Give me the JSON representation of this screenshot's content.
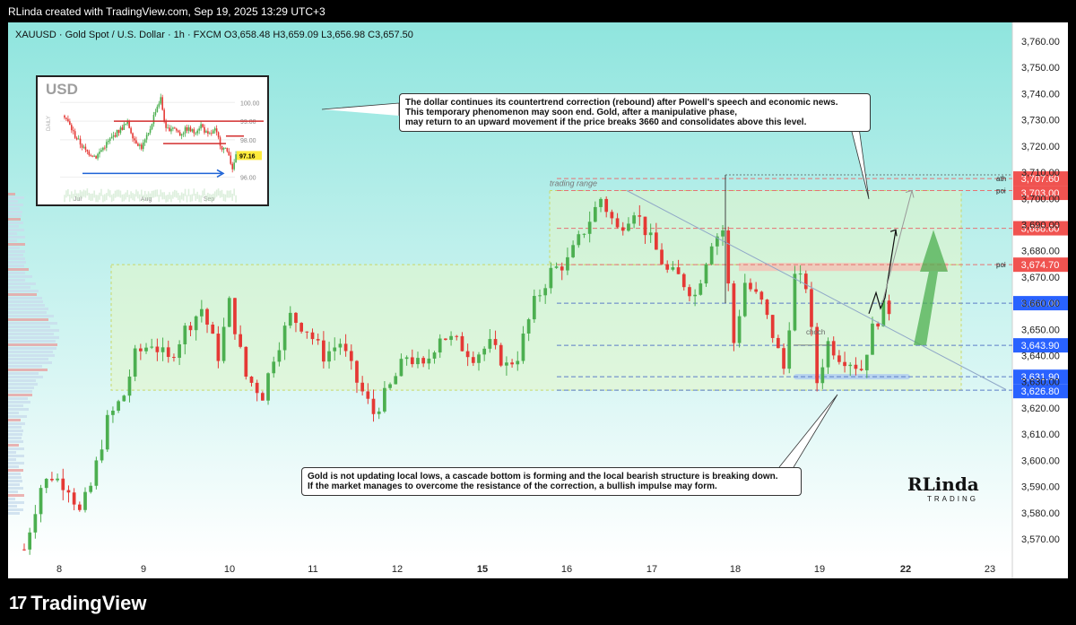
{
  "header": {
    "credit": "RLinda created with TradingView.com, Sep 19, 2025 13:29 UTC+3"
  },
  "footer": {
    "brand": "TradingView"
  },
  "colors": {
    "up": "#4caf50",
    "down": "#e53935",
    "bg_top": "#8fe5de",
    "bg_bottom": "#ffffff",
    "range_fill": "#e3f5c8",
    "label_red": "#f05350",
    "label_blue": "#2962ff",
    "level_red": "#e57373",
    "level_blue": "#5c7ec8"
  },
  "chart_data": {
    "type": "candlestick",
    "symbol_line": "XAUUSD · Gold Spot / U.S. Dollar · 1h · FXCM   O3,658.48  H3,659.09  L3,656.98  C3,657.50",
    "ohlc": {
      "open": 3658.48,
      "high": 3659.09,
      "low": 3656.98,
      "close": 3657.5
    },
    "y_ticks": [
      3570,
      3580,
      3590,
      3600,
      3610,
      3620,
      3630,
      3640,
      3650,
      3660,
      3670,
      3680,
      3690,
      3700,
      3710,
      3720,
      3730,
      3740,
      3750,
      3760
    ],
    "y_tick_labels": [
      "3,570.00",
      "3,580.00",
      "3,590.00",
      "3,600.00",
      "3,610.00",
      "3,620.00",
      "3,630.00",
      "3,640.00",
      "3,650.00",
      "3,660.00",
      "3,670.00",
      "3,680.00",
      "3,690.00",
      "3,700.00",
      "3,710.00",
      "3,720.00",
      "3,730.00",
      "3,740.00",
      "3,750.00",
      "3,760.00"
    ],
    "ylim": [
      3562,
      3767
    ],
    "x_ticks": [
      "8",
      "9",
      "10",
      "11",
      "12",
      "15",
      "16",
      "17",
      "18",
      "19",
      "22",
      "23"
    ],
    "bold_x_ticks": [
      "15",
      "22"
    ],
    "path": [
      [
        0,
        3566
      ],
      [
        3,
        3590
      ],
      [
        5,
        3594
      ],
      [
        8,
        3590
      ],
      [
        10,
        3580
      ],
      [
        12,
        3590
      ],
      [
        15,
        3615
      ],
      [
        18,
        3625
      ],
      [
        20,
        3640
      ],
      [
        23,
        3645
      ],
      [
        26,
        3638
      ],
      [
        29,
        3650
      ],
      [
        32,
        3658
      ],
      [
        35,
        3640
      ],
      [
        37,
        3660
      ],
      [
        40,
        3632
      ],
      [
        43,
        3625
      ],
      [
        45,
        3640
      ],
      [
        48,
        3655
      ],
      [
        51,
        3650
      ],
      [
        54,
        3640
      ],
      [
        57,
        3645
      ],
      [
        60,
        3630
      ],
      [
        63,
        3618
      ],
      [
        66,
        3628
      ],
      [
        69,
        3640
      ],
      [
        72,
        3635
      ],
      [
        75,
        3648
      ],
      [
        78,
        3645
      ],
      [
        81,
        3640
      ],
      [
        84,
        3644
      ],
      [
        87,
        3636
      ],
      [
        89,
        3640
      ],
      [
        92,
        3660
      ],
      [
        95,
        3672
      ],
      [
        98,
        3676
      ],
      [
        101,
        3688
      ],
      [
        104,
        3700
      ],
      [
        107,
        3688
      ],
      [
        110,
        3696
      ],
      [
        113,
        3684
      ],
      [
        116,
        3672
      ],
      [
        118,
        3670
      ],
      [
        121,
        3663
      ],
      [
        124,
        3684
      ],
      [
        126,
        3688
      ],
      [
        128,
        3645
      ],
      [
        130,
        3668
      ],
      [
        133,
        3660
      ],
      [
        135,
        3648
      ],
      [
        137,
        3635
      ],
      [
        139,
        3670
      ],
      [
        141,
        3667
      ],
      [
        143,
        3630
      ],
      [
        145,
        3645
      ],
      [
        147,
        3640
      ],
      [
        149,
        3638
      ],
      [
        151,
        3635
      ],
      [
        153,
        3650
      ],
      [
        155,
        3658
      ],
      [
        156,
        3657.5
      ]
    ],
    "x_max": 175,
    "levels": [
      {
        "label": "3,707.60",
        "value": 3707.6,
        "color": "red",
        "tag": "ath"
      },
      {
        "label": "3,703.00",
        "value": 3703.0,
        "color": "red",
        "tag": "poi"
      },
      {
        "label": "3,688.60",
        "value": 3688.6,
        "color": "red",
        "tag": ""
      },
      {
        "label": "3,674.70",
        "value": 3674.7,
        "color": "red",
        "tag": "poi"
      },
      {
        "label": "3,660.00",
        "value": 3660.0,
        "color": "blue",
        "tag": ""
      },
      {
        "label": "3,643.90",
        "value": 3643.9,
        "color": "blue",
        "tag": ""
      },
      {
        "label": "3,631.90",
        "value": 3631.9,
        "color": "blue",
        "tag": ""
      },
      {
        "label": "3,626.80",
        "value": 3626.8,
        "color": "blue",
        "tag": ""
      }
    ],
    "annotations": {
      "trading_range": "trading range",
      "choch": "choch"
    },
    "inset": {
      "label": "USD",
      "timeframe": "DAILY",
      "y_ticks": [
        "100.00",
        "99.00",
        "98.00",
        "97.16",
        "96.00"
      ],
      "x_ticks": [
        "Jul",
        "Aug",
        "Sep"
      ],
      "last_value": "97.16"
    }
  },
  "notes": {
    "top": [
      "The dollar continues its countertrend correction (rebound) after Powell's speech and economic news.",
      "This temporary phenomenon may soon end. Gold, after a manipulative phase,",
      "may return to an upward movement if the price breaks 3660 and consolidates above this level."
    ],
    "bottom": [
      "Gold is not updating local lows, a cascade bottom is forming and the local bearish structure is breaking down.",
      "If the market manages to overcome the resistance of the correction, a bullish impulse may form."
    ]
  },
  "logo": {
    "main": "RLinda",
    "sub": "TRADING"
  }
}
